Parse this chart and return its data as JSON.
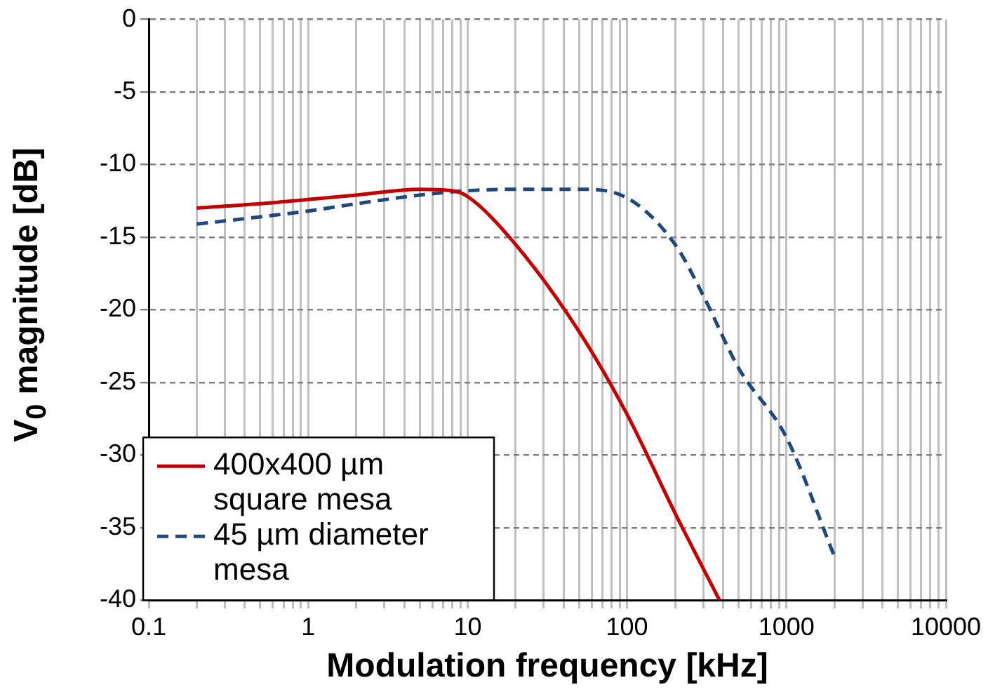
{
  "chart_data": {
    "type": "line",
    "xlabel": "Modulation frequency [kHz]",
    "ylabel": "V$_{0}$ magnitude [dB]",
    "log": "x",
    "xlim": [
      0.1,
      10000
    ],
    "ylim": [
      -40,
      0
    ],
    "xticks": [
      0.1,
      {
        "value": 0.2,
        "label": null
      },
      {
        "value": 0.3,
        "label": null
      },
      {
        "value": 0.4,
        "label": null
      },
      {
        "value": 0.5,
        "label": null
      },
      {
        "value": 0.6,
        "label": null
      },
      {
        "value": 0.7,
        "label": null
      },
      {
        "value": 0.8,
        "label": null
      },
      {
        "value": 0.9,
        "label": null
      },
      1,
      {
        "value": 2,
        "label": null
      },
      {
        "value": 3,
        "label": null
      },
      {
        "value": 4,
        "label": null
      },
      {
        "value": 5,
        "label": null
      },
      {
        "value": 6,
        "label": null
      },
      {
        "value": 7,
        "label": null
      },
      {
        "value": 8,
        "label": null
      },
      {
        "value": 9,
        "label": null
      },
      10,
      {
        "value": 20,
        "label": null
      },
      {
        "value": 30,
        "label": null
      },
      {
        "value": 40,
        "label": null
      },
      {
        "value": 50,
        "label": null
      },
      {
        "value": 60,
        "label": null
      },
      {
        "value": 70,
        "label": null
      },
      {
        "value": 80,
        "label": null
      },
      {
        "value": 90,
        "label": null
      },
      100,
      {
        "value": 200,
        "label": null
      },
      {
        "value": 300,
        "label": null
      },
      {
        "value": 400,
        "label": null
      },
      {
        "value": 500,
        "label": null
      },
      {
        "value": 600,
        "label": null
      },
      {
        "value": 700,
        "label": null
      },
      {
        "value": 800,
        "label": null
      },
      {
        "value": 900,
        "label": null
      },
      1000,
      {
        "value": 2000,
        "label": null
      },
      {
        "value": 3000,
        "label": null
      },
      {
        "value": 4000,
        "label": null
      },
      {
        "value": 5000,
        "label": null
      },
      {
        "value": 6000,
        "label": null
      },
      {
        "value": 7000,
        "label": null
      },
      {
        "value": 8000,
        "label": null
      },
      {
        "value": 9000,
        "label": null
      },
      10000
    ],
    "yticks": [
      -40,
      -35,
      -30,
      -25,
      -20,
      -15,
      -10,
      -5,
      0
    ],
    "grid": true,
    "legend": "bottom left",
    "series": [
      {
        "name": "400x400 µm square mesa",
        "color": "#c00000",
        "line_style": "solid",
        "x": [
          0.2,
          0.5,
          1,
          2,
          5,
          8,
          10,
          20,
          50,
          100,
          200,
          380
        ],
        "values": [
          -13,
          -12.7,
          -12.4,
          -12.1,
          -11.7,
          -11.8,
          -12.2,
          -15.5,
          -21.5,
          -27.2,
          -34,
          -40
        ]
      },
      {
        "name": "45 µm diameter mesa",
        "color": "#1f497d",
        "line_style": "dashed",
        "x": [
          0.2,
          0.5,
          1,
          2,
          5,
          10,
          20,
          50,
          100,
          200,
          300,
          500,
          1000,
          2000
        ],
        "values": [
          -14.1,
          -13.6,
          -13.2,
          -12.7,
          -12.1,
          -11.8,
          -11.7,
          -11.7,
          -12.3,
          -15.5,
          -19,
          -24,
          -28.8,
          -37
        ]
      }
    ]
  }
}
